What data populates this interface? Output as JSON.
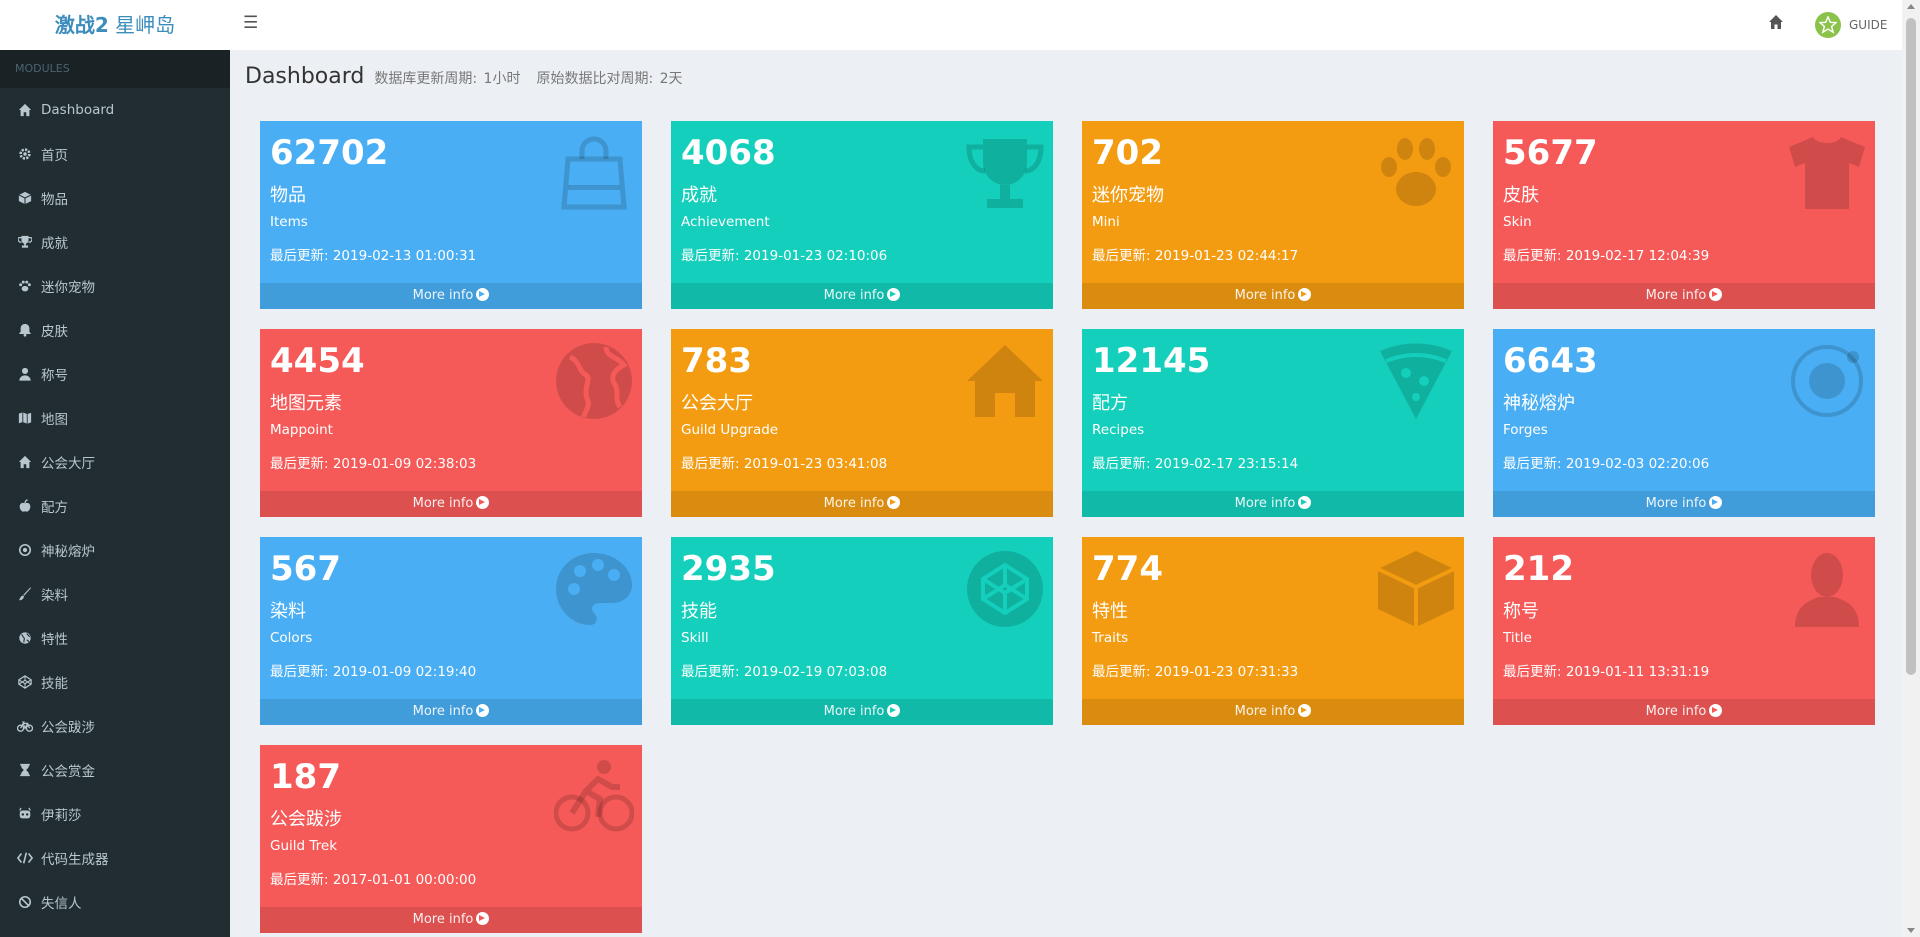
{
  "header": {
    "logo_bold": "激战2",
    "logo_rest": "星岬岛",
    "guide_label": "GUIDE"
  },
  "sidebar": {
    "section_label": "MODULES",
    "items": [
      {
        "label": "Dashboard",
        "icon": "home-icon"
      },
      {
        "label": "首页",
        "icon": "gear-icon"
      },
      {
        "label": "物品",
        "icon": "cube-icon"
      },
      {
        "label": "成就",
        "icon": "trophy-icon"
      },
      {
        "label": "迷你宠物",
        "icon": "paw-icon"
      },
      {
        "label": "皮肤",
        "icon": "bell-icon"
      },
      {
        "label": "称号",
        "icon": "user-icon"
      },
      {
        "label": "地图",
        "icon": "map-icon"
      },
      {
        "label": "公会大厅",
        "icon": "home-icon"
      },
      {
        "label": "配方",
        "icon": "apple-icon"
      },
      {
        "label": "神秘熔炉",
        "icon": "circle-dot-icon"
      },
      {
        "label": "染料",
        "icon": "brush-icon"
      },
      {
        "label": "特性",
        "icon": "globe-icon"
      },
      {
        "label": "技能",
        "icon": "codepen-icon"
      },
      {
        "label": "公会跋涉",
        "icon": "bicycle-icon"
      },
      {
        "label": "公会赏金",
        "icon": "hourglass-icon"
      },
      {
        "label": "伊莉莎",
        "icon": "robot-icon"
      },
      {
        "label": "代码生成器",
        "icon": "code-icon"
      },
      {
        "label": "失信人",
        "icon": "ban-icon"
      }
    ]
  },
  "page": {
    "title": "Dashboard",
    "db_cycle_label": "数据库更新周期:",
    "db_cycle_value": "1小时",
    "raw_cycle_label": "原始数据比对周期:",
    "raw_cycle_value": "2天"
  },
  "more_info": "More info",
  "cards": [
    {
      "count": "62702",
      "cn": "物品",
      "en": "Items",
      "updated": "最后更新: 2019-02-13 01:00:31",
      "color": "blue",
      "icon": "shopping-bag-icon"
    },
    {
      "count": "4068",
      "cn": "成就",
      "en": "Achievement",
      "updated": "最后更新: 2019-01-23 02:10:06",
      "color": "teal",
      "icon": "trophy-icon"
    },
    {
      "count": "702",
      "cn": "迷你宠物",
      "en": "Mini",
      "updated": "最后更新: 2019-01-23 02:44:17",
      "color": "orange",
      "icon": "paw-icon"
    },
    {
      "count": "5677",
      "cn": "皮肤",
      "en": "Skin",
      "updated": "最后更新: 2019-02-17 12:04:39",
      "color": "red",
      "icon": "shirt-icon"
    },
    {
      "count": "4454",
      "cn": "地图元素",
      "en": "Mappoint",
      "updated": "最后更新: 2019-01-09 02:38:03",
      "color": "red",
      "icon": "globe-icon"
    },
    {
      "count": "783",
      "cn": "公会大厅",
      "en": "Guild Upgrade",
      "updated": "最后更新: 2019-01-23 03:41:08",
      "color": "orange",
      "icon": "house-icon"
    },
    {
      "count": "12145",
      "cn": "配方",
      "en": "Recipes",
      "updated": "最后更新: 2019-02-17 23:15:14",
      "color": "teal",
      "icon": "pizza-icon"
    },
    {
      "count": "6643",
      "cn": "神秘熔炉",
      "en": "Forges",
      "updated": "最后更新: 2019-02-03 02:20:06",
      "color": "blue",
      "icon": "orbit-icon"
    },
    {
      "count": "567",
      "cn": "染料",
      "en": "Colors",
      "updated": "最后更新: 2019-01-09 02:19:40",
      "color": "blue",
      "icon": "palette-icon"
    },
    {
      "count": "2935",
      "cn": "技能",
      "en": "Skill",
      "updated": "最后更新: 2019-02-19 07:03:08",
      "color": "teal",
      "icon": "codepen-icon"
    },
    {
      "count": "774",
      "cn": "特性",
      "en": "Traits",
      "updated": "最后更新: 2019-01-23 07:31:33",
      "color": "orange",
      "icon": "cube-icon"
    },
    {
      "count": "212",
      "cn": "称号",
      "en": "Title",
      "updated": "最后更新: 2019-01-11 13:31:19",
      "color": "red",
      "icon": "person-icon"
    },
    {
      "count": "187",
      "cn": "公会跋涉",
      "en": "Guild Trek",
      "updated": "最后更新: 2017-01-01 00:00:00",
      "color": "red",
      "icon": "bicycle-icon"
    }
  ]
}
